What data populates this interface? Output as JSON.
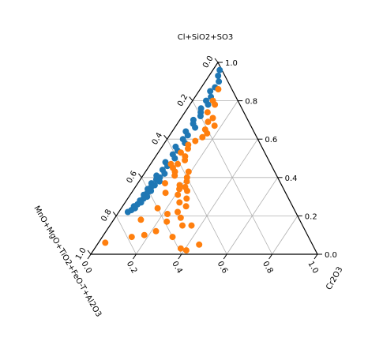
{
  "chart_data": {
    "type": "scatter",
    "subtype": "ternary",
    "axis_labels": {
      "top": "Cl+SiO2+SO3",
      "left": "MnO+MgO+TiO2+FeO-T+Al2O3",
      "right": "Cr2O3"
    },
    "ticks": {
      "right": [
        "0.0",
        "0.2",
        "0.4",
        "0.6",
        "0.8",
        "1.0"
      ],
      "left": [
        "0.0",
        "0.2",
        "0.4",
        "0.6",
        "0.8",
        "1.0"
      ],
      "bottom": [
        "0.0",
        "0.2",
        "0.4",
        "0.6",
        "0.8",
        "1.0"
      ]
    },
    "grid": true,
    "series": [
      {
        "color": "#1f77b4",
        "points": [
          [
            0.96,
            0.03
          ],
          [
            0.93,
            0.04
          ],
          [
            0.9,
            0.06
          ],
          [
            0.87,
            0.06
          ],
          [
            0.85,
            0.05
          ],
          [
            0.82,
            0.07
          ],
          [
            0.8,
            0.06
          ],
          [
            0.78,
            0.08
          ],
          [
            0.76,
            0.06
          ],
          [
            0.74,
            0.07
          ],
          [
            0.72,
            0.08
          ],
          [
            0.7,
            0.06
          ],
          [
            0.68,
            0.07
          ],
          [
            0.66,
            0.09
          ],
          [
            0.64,
            0.06
          ],
          [
            0.62,
            0.08
          ],
          [
            0.6,
            0.07
          ],
          [
            0.58,
            0.09
          ],
          [
            0.56,
            0.06
          ],
          [
            0.54,
            0.08
          ],
          [
            0.52,
            0.07
          ],
          [
            0.5,
            0.09
          ],
          [
            0.48,
            0.06
          ],
          [
            0.46,
            0.08
          ],
          [
            0.44,
            0.07
          ],
          [
            0.42,
            0.09
          ],
          [
            0.41,
            0.06
          ],
          [
            0.4,
            0.08
          ],
          [
            0.39,
            0.07
          ],
          [
            0.38,
            0.09
          ],
          [
            0.37,
            0.06
          ],
          [
            0.36,
            0.08
          ],
          [
            0.35,
            0.07
          ],
          [
            0.34,
            0.06
          ],
          [
            0.33,
            0.08
          ],
          [
            0.32,
            0.07
          ],
          [
            0.31,
            0.06
          ],
          [
            0.3,
            0.08
          ],
          [
            0.29,
            0.07
          ],
          [
            0.28,
            0.06
          ],
          [
            0.27,
            0.07
          ],
          [
            0.26,
            0.06
          ],
          [
            0.25,
            0.05
          ],
          [
            0.24,
            0.06
          ],
          [
            0.23,
            0.05
          ],
          [
            0.22,
            0.04
          ]
        ]
      },
      {
        "color": "#ff7f0e",
        "points": [
          [
            0.86,
            0.08
          ],
          [
            0.8,
            0.09
          ],
          [
            0.78,
            0.11
          ],
          [
            0.74,
            0.1
          ],
          [
            0.71,
            0.14
          ],
          [
            0.69,
            0.13
          ],
          [
            0.67,
            0.17
          ],
          [
            0.65,
            0.14
          ],
          [
            0.63,
            0.16
          ],
          [
            0.61,
            0.15
          ],
          [
            0.59,
            0.13
          ],
          [
            0.57,
            0.11
          ],
          [
            0.55,
            0.12
          ],
          [
            0.53,
            0.1
          ],
          [
            0.51,
            0.13
          ],
          [
            0.49,
            0.14
          ],
          [
            0.47,
            0.12
          ],
          [
            0.45,
            0.11
          ],
          [
            0.43,
            0.13
          ],
          [
            0.41,
            0.14
          ],
          [
            0.43,
            0.19
          ],
          [
            0.4,
            0.2
          ],
          [
            0.38,
            0.21
          ],
          [
            0.36,
            0.19
          ],
          [
            0.34,
            0.2
          ],
          [
            0.35,
            0.22
          ],
          [
            0.33,
            0.24
          ],
          [
            0.31,
            0.21
          ],
          [
            0.29,
            0.26
          ],
          [
            0.27,
            0.24
          ],
          [
            0.25,
            0.28
          ],
          [
            0.22,
            0.26
          ],
          [
            0.21,
            0.22
          ],
          [
            0.19,
            0.29
          ],
          [
            0.17,
            0.24
          ],
          [
            0.15,
            0.36
          ],
          [
            0.15,
            0.32
          ],
          [
            0.12,
            0.22
          ],
          [
            0.1,
            0.18
          ],
          [
            0.09,
            0.13
          ],
          [
            0.09,
            0.31
          ],
          [
            0.06,
            0.03
          ],
          [
            0.03,
            0.38
          ],
          [
            0.02,
            0.41
          ],
          [
            0.05,
            0.45
          ],
          [
            0.18,
            0.12
          ],
          [
            0.24,
            0.16
          ],
          [
            0.47,
            0.09
          ],
          [
            0.37,
            0.12
          ],
          [
            0.32,
            0.15
          ]
        ]
      }
    ]
  }
}
